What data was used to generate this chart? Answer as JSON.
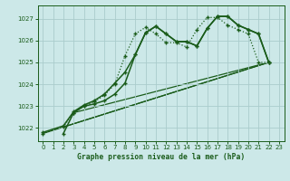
{
  "title": "Graphe pression niveau de la mer (hPa)",
  "bg_color": "#cce8e8",
  "grid_color": "#aacccc",
  "line_color": "#1a5c1a",
  "xlim": [
    -0.5,
    23.5
  ],
  "ylim": [
    1021.4,
    1027.6
  ],
  "xticks": [
    0,
    1,
    2,
    3,
    4,
    5,
    6,
    7,
    8,
    9,
    10,
    11,
    12,
    13,
    14,
    15,
    16,
    17,
    18,
    19,
    20,
    21,
    22,
    23
  ],
  "yticks": [
    1022,
    1023,
    1024,
    1025,
    1026,
    1027
  ],
  "series_main": {
    "x": [
      0,
      2,
      3,
      4,
      5,
      6,
      7,
      8,
      9,
      10,
      11,
      12,
      13,
      14,
      15,
      16,
      17,
      18,
      19,
      20,
      21,
      22
    ],
    "y": [
      1021.8,
      1022.1,
      1022.75,
      1023.05,
      1023.25,
      1023.55,
      1024.05,
      1024.55,
      1025.35,
      1026.35,
      1026.65,
      1026.3,
      1025.95,
      1025.95,
      1025.75,
      1026.55,
      1027.1,
      1027.1,
      1026.7,
      1026.5,
      1026.3,
      1025.0
    ]
  },
  "series_secondary": {
    "x": [
      2,
      3,
      4,
      5,
      6,
      7,
      8,
      9,
      10,
      11,
      12,
      13,
      14,
      15,
      16,
      17,
      18,
      19,
      20,
      21,
      22
    ],
    "y": [
      1021.75,
      1022.7,
      1023.0,
      1023.1,
      1023.25,
      1023.55,
      1024.05,
      1025.35,
      1026.35,
      1026.65,
      1026.3,
      1025.95,
      1025.95,
      1025.75,
      1026.55,
      1027.1,
      1027.1,
      1026.7,
      1026.5,
      1026.3,
      1025.0
    ]
  },
  "series_dotted": {
    "x": [
      0,
      2,
      3,
      4,
      5,
      6,
      7,
      8,
      9,
      10,
      11,
      12,
      13,
      14,
      15,
      16,
      17,
      18,
      19,
      20,
      21,
      22
    ],
    "y": [
      1021.75,
      1022.05,
      1022.7,
      1023.0,
      1023.2,
      1023.5,
      1024.0,
      1025.3,
      1026.3,
      1026.6,
      1026.3,
      1025.9,
      1025.9,
      1025.7,
      1026.5,
      1027.05,
      1027.05,
      1026.7,
      1026.5,
      1026.3,
      1025.0,
      1025.0
    ]
  },
  "trend1": {
    "x": [
      0,
      22
    ],
    "y": [
      1021.75,
      1025.0
    ]
  },
  "trend2": {
    "x": [
      2,
      22
    ],
    "y": [
      1022.05,
      1025.0
    ]
  },
  "trend3": {
    "x": [
      3,
      22
    ],
    "y": [
      1022.7,
      1025.0
    ]
  }
}
